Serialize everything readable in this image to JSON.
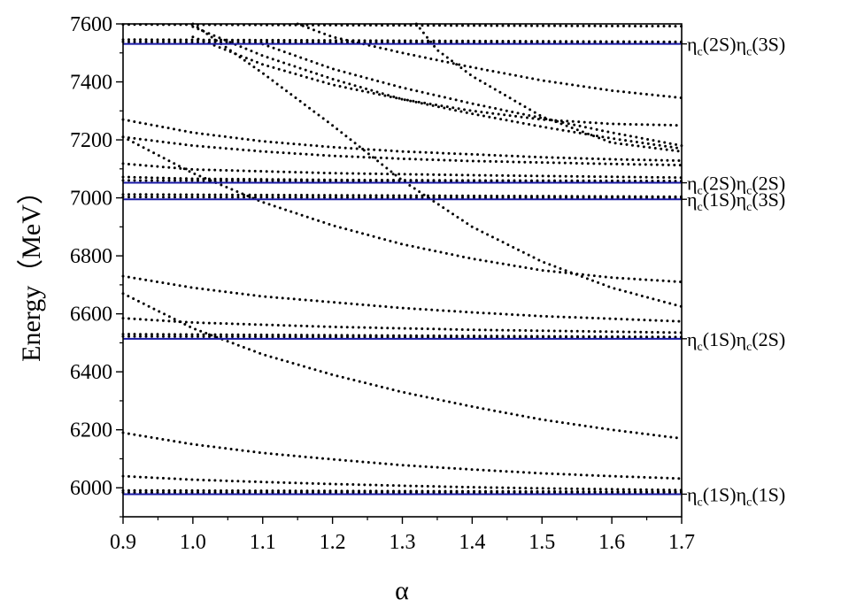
{
  "chart_data": {
    "type": "line",
    "title": "",
    "xlabel": "α",
    "ylabel": "Energy（MeV）",
    "xlim": [
      0.9,
      1.7
    ],
    "ylim": [
      5900,
      7600
    ],
    "xticks": [
      0.9,
      1.0,
      1.1,
      1.2,
      1.3,
      1.4,
      1.5,
      1.6,
      1.7
    ],
    "xtick_labels": [
      "0.9",
      "1.0",
      "1.1",
      "1.2",
      "1.3",
      "1.4",
      "1.5",
      "1.6",
      "1.7"
    ],
    "yticks": [
      6000,
      6200,
      6400,
      6600,
      6800,
      7000,
      7200,
      7400,
      7600
    ],
    "ytick_labels": [
      "6000",
      "6200",
      "6400",
      "6600",
      "6800",
      "7000",
      "7200",
      "7400",
      "7600"
    ],
    "grid": false,
    "threshold_color": "#1a1aa6",
    "dotted_color": "#000000",
    "thresholds": [
      {
        "energy": 5978,
        "label": {
          "a": "η",
          "sa": "c",
          "b": "(1S)η",
          "sb": "c",
          "c": "(1S)"
        }
      },
      {
        "energy": 6514,
        "label": {
          "a": "η",
          "sa": "c",
          "b": "(1S)η",
          "sb": "c",
          "c": "(2S)"
        }
      },
      {
        "energy": 6995,
        "label": {
          "a": "η",
          "sa": "c",
          "b": "(1S)η",
          "sb": "c",
          "c": "(3S)"
        }
      },
      {
        "energy": 7052,
        "label": {
          "a": "η",
          "sa": "c",
          "b": "(2S)η",
          "sb": "c",
          "c": "(2S)"
        }
      },
      {
        "energy": 7531,
        "label": {
          "a": "η",
          "sa": "c",
          "b": "(2S)η",
          "sb": "c",
          "c": "(3S)"
        }
      }
    ],
    "series": [
      {
        "x": [
          0.9,
          1.7
        ],
        "y": [
          5984,
          5984
        ]
      },
      {
        "x": [
          0.9,
          1.7
        ],
        "y": [
          5991,
          5986
        ]
      },
      {
        "x": [
          0.9,
          1.0,
          1.1,
          1.2,
          1.3,
          1.4,
          1.5,
          1.6,
          1.7
        ],
        "y": [
          6040,
          6028,
          6020,
          6013,
          6007,
          6002,
          5998,
          5995,
          5992
        ]
      },
      {
        "x": [
          0.9,
          1.0,
          1.1,
          1.2,
          1.3,
          1.4,
          1.5,
          1.6,
          1.7
        ],
        "y": [
          6190,
          6150,
          6120,
          6098,
          6078,
          6063,
          6050,
          6040,
          6032
        ]
      },
      {
        "x": [
          0.9,
          1.0,
          1.1,
          1.2,
          1.3,
          1.4,
          1.5,
          1.6,
          1.7
        ],
        "y": [
          6670,
          6550,
          6460,
          6390,
          6330,
          6280,
          6235,
          6200,
          6170
        ]
      },
      {
        "x": [
          0.9,
          1.7
        ],
        "y": [
          6522,
          6517
        ]
      },
      {
        "x": [
          0.9,
          1.7
        ],
        "y": [
          6530,
          6520
        ]
      },
      {
        "x": [
          0.9,
          1.0,
          1.2,
          1.4,
          1.7
        ],
        "y": [
          6585,
          6570,
          6555,
          6545,
          6535
        ]
      },
      {
        "x": [
          0.9,
          1.0,
          1.1,
          1.2,
          1.3,
          1.4,
          1.5,
          1.6,
          1.7
        ],
        "y": [
          6730,
          6690,
          6660,
          6640,
          6620,
          6605,
          6592,
          6583,
          6574
        ]
      },
      {
        "x": [
          0.9,
          1.0,
          1.1,
          1.2,
          1.3,
          1.4,
          1.5,
          1.6,
          1.7
        ],
        "y": [
          7210,
          7085,
          6985,
          6905,
          6840,
          6790,
          6750,
          6725,
          6710
        ]
      },
      {
        "x": [
          0.9,
          1.7
        ],
        "y": [
          7003,
          6999
        ]
      },
      {
        "x": [
          0.9,
          1.7
        ],
        "y": [
          7012,
          7004
        ]
      },
      {
        "x": [
          0.9,
          1.7
        ],
        "y": [
          7060,
          7056
        ]
      },
      {
        "x": [
          0.9,
          1.0,
          1.2,
          1.4,
          1.7
        ],
        "y": [
          7072,
          7066,
          7062,
          7060,
          7058
        ]
      },
      {
        "x": [
          0.9,
          1.0,
          1.2,
          1.4,
          1.7
        ],
        "y": [
          7118,
          7098,
          7085,
          7078,
          7070
        ]
      },
      {
        "x": [
          0.9,
          1.0,
          1.1,
          1.2,
          1.3,
          1.4,
          1.5,
          1.6,
          1.7
        ],
        "y": [
          7210,
          7180,
          7160,
          7145,
          7135,
          7127,
          7122,
          7117,
          7113
        ]
      },
      {
        "x": [
          0.9,
          1.0,
          1.1,
          1.2,
          1.3,
          1.4,
          1.5,
          1.6,
          1.7
        ],
        "y": [
          7270,
          7225,
          7195,
          7175,
          7160,
          7150,
          7140,
          7133,
          7128
        ]
      },
      {
        "x": [
          0.9,
          1.7
        ],
        "y": [
          7538,
          7534
        ]
      },
      {
        "x": [
          0.9,
          1.7
        ],
        "y": [
          7546,
          7538
        ]
      },
      {
        "x": [
          0.9,
          1.7
        ],
        "y": [
          7598,
          7592
        ]
      },
      {
        "x": [
          1.0,
          1.1,
          1.2,
          1.3,
          1.4,
          1.5,
          1.6,
          1.7
        ],
        "y": [
          7555,
          7460,
          7390,
          7340,
          7300,
          7270,
          7255,
          7250
        ]
      },
      {
        "x": [
          1.1,
          1.2,
          1.3,
          1.4,
          1.5,
          1.6,
          1.7
        ],
        "y": [
          7530,
          7445,
          7380,
          7325,
          7275,
          7225,
          7180
        ]
      },
      {
        "x": [
          1.0,
          1.1,
          1.2,
          1.3,
          1.4,
          1.5,
          1.6,
          1.7
        ],
        "y": [
          7590,
          7490,
          7410,
          7340,
          7290,
          7245,
          7205,
          7170
        ]
      },
      {
        "x": [
          1.15,
          1.2,
          1.3,
          1.4,
          1.5,
          1.6,
          1.7
        ],
        "y": [
          7600,
          7555,
          7500,
          7450,
          7405,
          7370,
          7345
        ]
      },
      {
        "x": [
          1.32,
          1.35,
          1.4,
          1.5,
          1.6,
          1.7
        ],
        "y": [
          7600,
          7510,
          7420,
          7280,
          7190,
          7160
        ]
      },
      {
        "x": [
          1.0,
          1.1,
          1.2,
          1.3,
          1.4,
          1.5,
          1.6,
          1.7
        ],
        "y": [
          7600,
          7430,
          7250,
          7060,
          6900,
          6780,
          6690,
          6625
        ]
      }
    ]
  }
}
